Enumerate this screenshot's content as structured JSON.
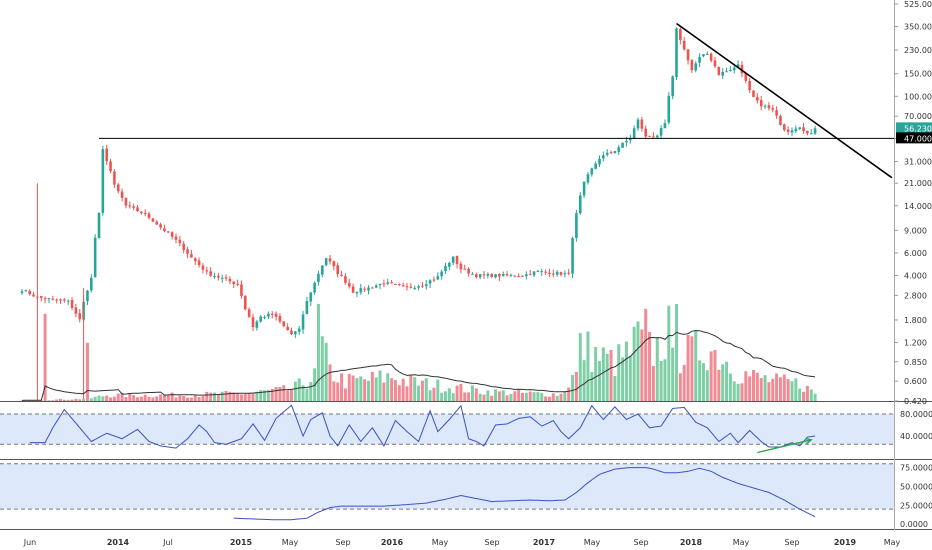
{
  "chart_data": {
    "type": "candlestick",
    "scale": "log",
    "colors": {
      "up": "#26a69a",
      "down": "#ef5350",
      "volume_up": "#7fcfa6",
      "volume_down": "#f08b95",
      "osc_line": "#3d4fc4",
      "osc_band": "#dde8fb",
      "trendline": "#000000",
      "arrow": "#2aa64a",
      "current_tag": "#26a69a",
      "level_tag": "#000000"
    },
    "price_axis": {
      "ticks": [
        "525.000",
        "350.000",
        "230.000",
        "150.000",
        "100.000",
        "70.000",
        "47.000",
        "31.000",
        "21.000",
        "14.000",
        "9.000",
        "6.000",
        "4.000",
        "2.800",
        "1.800",
        "1.200",
        "0.850",
        "0.600",
        "0.420"
      ],
      "tick_values": [
        525,
        350,
        230,
        150,
        100,
        70,
        47,
        31,
        21,
        14,
        9,
        6,
        4,
        2.8,
        1.8,
        1.2,
        0.85,
        0.6,
        0.42
      ],
      "current_price_tag": "56.230",
      "level_tag": "47.000",
      "current_value": 56.23,
      "level_value": 47
    },
    "time_axis": {
      "labels": [
        "Jun",
        "2014",
        "Jul",
        "2015",
        "May",
        "Sep",
        "2016",
        "May",
        "Sep",
        "2017",
        "May",
        "Sep",
        "2018",
        "May",
        "Sep",
        "2019",
        "May"
      ],
      "bold": [
        false,
        true,
        false,
        true,
        false,
        false,
        true,
        false,
        false,
        true,
        false,
        false,
        true,
        false,
        false,
        true,
        false
      ]
    },
    "horizontal_level": 47,
    "trendline": {
      "from": {
        "index": 170,
        "value": 370
      },
      "to": {
        "index": 227,
        "value": 22
      }
    },
    "close_anchors": [
      [
        0,
        3.1
      ],
      [
        4,
        2.7
      ],
      [
        8,
        2.6
      ],
      [
        12,
        2.5
      ],
      [
        15,
        1.8
      ],
      [
        18,
        3.8
      ],
      [
        20,
        12.0
      ],
      [
        21,
        38.0
      ],
      [
        24,
        20.0
      ],
      [
        27,
        14.0
      ],
      [
        32,
        12.0
      ],
      [
        36,
        9.5
      ],
      [
        40,
        7.5
      ],
      [
        44,
        5.5
      ],
      [
        48,
        4.2
      ],
      [
        52,
        3.8
      ],
      [
        56,
        3.4
      ],
      [
        58,
        2.2
      ],
      [
        60,
        1.6
      ],
      [
        62,
        1.9
      ],
      [
        65,
        2.0
      ],
      [
        68,
        1.6
      ],
      [
        70,
        1.4
      ],
      [
        72,
        1.5
      ],
      [
        76,
        3.5
      ],
      [
        79,
        5.5
      ],
      [
        82,
        4.2
      ],
      [
        86,
        3.0
      ],
      [
        90,
        3.2
      ],
      [
        94,
        3.5
      ],
      [
        100,
        3.2
      ],
      [
        104,
        3.4
      ],
      [
        108,
        3.9
      ],
      [
        112,
        5.5
      ],
      [
        114,
        4.5
      ],
      [
        118,
        4.0
      ],
      [
        124,
        4.0
      ],
      [
        130,
        4.0
      ],
      [
        134,
        4.3
      ],
      [
        138,
        4.2
      ],
      [
        142,
        4.1
      ],
      [
        144,
        12.0
      ],
      [
        146,
        21.0
      ],
      [
        150,
        33.0
      ],
      [
        154,
        38.0
      ],
      [
        158,
        47.0
      ],
      [
        160,
        65.0
      ],
      [
        162,
        48.0
      ],
      [
        165,
        50.0
      ],
      [
        167,
        60.0
      ],
      [
        169,
        140.0
      ],
      [
        170,
        330.0
      ],
      [
        172,
        230.0
      ],
      [
        174,
        160.0
      ],
      [
        176,
        200.0
      ],
      [
        178,
        215.0
      ],
      [
        181,
        150.0
      ],
      [
        184,
        160.0
      ],
      [
        186,
        175.0
      ],
      [
        188,
        130.0
      ],
      [
        190,
        100.0
      ],
      [
        192,
        85.0
      ],
      [
        195,
        80.0
      ],
      [
        197,
        60.0
      ],
      [
        199,
        52.0
      ],
      [
        202,
        56.0
      ],
      [
        204,
        50.0
      ],
      [
        206,
        56.23
      ]
    ],
    "volume_anchors": [
      [
        0,
        0.005
      ],
      [
        14,
        0.02
      ],
      [
        18,
        0.03
      ],
      [
        22,
        0.06
      ],
      [
        30,
        0.06
      ],
      [
        40,
        0.06
      ],
      [
        50,
        0.07
      ],
      [
        58,
        0.08
      ],
      [
        64,
        0.1
      ],
      [
        70,
        0.12
      ],
      [
        76,
        0.25
      ],
      [
        78,
        0.55
      ],
      [
        80,
        0.3
      ],
      [
        84,
        0.2
      ],
      [
        90,
        0.22
      ],
      [
        96,
        0.25
      ],
      [
        100,
        0.2
      ],
      [
        110,
        0.15
      ],
      [
        120,
        0.1
      ],
      [
        130,
        0.08
      ],
      [
        140,
        0.07
      ],
      [
        144,
        0.3
      ],
      [
        146,
        0.55
      ],
      [
        150,
        0.45
      ],
      [
        154,
        0.4
      ],
      [
        158,
        0.5
      ],
      [
        160,
        0.65
      ],
      [
        164,
        0.5
      ],
      [
        168,
        0.7
      ],
      [
        169,
        0.85
      ],
      [
        170,
        0.45
      ],
      [
        174,
        0.5
      ],
      [
        178,
        0.55
      ],
      [
        182,
        0.45
      ],
      [
        186,
        0.3
      ],
      [
        190,
        0.25
      ],
      [
        196,
        0.2
      ],
      [
        202,
        0.18
      ],
      [
        206,
        0.08
      ]
    ],
    "volume_spikes": [
      [
        6,
        0.9,
        "down"
      ],
      [
        17,
        0.6,
        "down"
      ],
      [
        77,
        1.0,
        "up"
      ],
      [
        144,
        0.3,
        "down"
      ],
      [
        145,
        0.7,
        "up"
      ],
      [
        162,
        0.95,
        "down"
      ],
      [
        169,
        0.55,
        "up"
      ],
      [
        170,
        1.0,
        "up"
      ]
    ],
    "oscillator_1": {
      "ticks": [
        "80.0000",
        "40.0000"
      ],
      "tick_values": [
        80,
        40
      ],
      "band": [
        80,
        25
      ],
      "range": [
        0,
        100
      ],
      "anchors": [
        [
          2,
          28
        ],
        [
          6,
          28
        ],
        [
          8,
          55
        ],
        [
          11,
          88
        ],
        [
          15,
          55
        ],
        [
          18,
          30
        ],
        [
          22,
          45
        ],
        [
          26,
          35
        ],
        [
          30,
          52
        ],
        [
          33,
          30
        ],
        [
          36,
          22
        ],
        [
          40,
          18
        ],
        [
          43,
          35
        ],
        [
          46,
          60
        ],
        [
          48,
          48
        ],
        [
          50,
          28
        ],
        [
          53,
          25
        ],
        [
          57,
          35
        ],
        [
          60,
          62
        ],
        [
          63,
          32
        ],
        [
          66,
          72
        ],
        [
          70,
          96
        ],
        [
          73,
          40
        ],
        [
          75,
          70
        ],
        [
          78,
          82
        ],
        [
          80,
          40
        ],
        [
          82,
          22
        ],
        [
          85,
          60
        ],
        [
          88,
          30
        ],
        [
          91,
          55
        ],
        [
          94,
          22
        ],
        [
          97,
          68
        ],
        [
          100,
          48
        ],
        [
          103,
          30
        ],
        [
          106,
          86
        ],
        [
          108,
          48
        ],
        [
          111,
          70
        ],
        [
          114,
          95
        ],
        [
          116,
          35
        ],
        [
          118,
          30
        ],
        [
          120,
          22
        ],
        [
          123,
          60
        ],
        [
          126,
          62
        ],
        [
          129,
          72
        ],
        [
          132,
          75
        ],
        [
          135,
          58
        ],
        [
          138,
          68
        ],
        [
          140,
          48
        ],
        [
          142,
          35
        ],
        [
          145,
          55
        ],
        [
          148,
          95
        ],
        [
          151,
          70
        ],
        [
          154,
          93
        ],
        [
          157,
          70
        ],
        [
          160,
          80
        ],
        [
          163,
          55
        ],
        [
          166,
          58
        ],
        [
          169,
          90
        ],
        [
          172,
          92
        ],
        [
          175,
          65
        ],
        [
          178,
          55
        ],
        [
          181,
          30
        ],
        [
          184,
          45
        ],
        [
          186,
          28
        ],
        [
          189,
          50
        ],
        [
          192,
          30
        ],
        [
          194,
          20
        ],
        [
          197,
          20
        ],
        [
          200,
          28
        ],
        [
          202,
          22
        ],
        [
          204,
          38
        ],
        [
          206,
          40
        ]
      ],
      "arrow": {
        "from": [
          191,
          10
        ],
        "to": [
          205,
          33
        ]
      }
    },
    "oscillator_2": {
      "ticks": [
        "75.0000",
        "50.0000",
        "25.0000",
        "0.0000"
      ],
      "tick_values": [
        75,
        50,
        25,
        0
      ],
      "band": [
        80,
        20
      ],
      "range": [
        -5,
        85
      ],
      "anchors": [
        [
          55,
          8
        ],
        [
          60,
          7
        ],
        [
          65,
          6
        ],
        [
          70,
          6
        ],
        [
          74,
          8
        ],
        [
          77,
          16
        ],
        [
          80,
          22
        ],
        [
          83,
          24
        ],
        [
          88,
          24
        ],
        [
          94,
          24
        ],
        [
          100,
          26
        ],
        [
          105,
          28
        ],
        [
          110,
          33
        ],
        [
          114,
          38
        ],
        [
          118,
          34
        ],
        [
          122,
          30
        ],
        [
          127,
          31
        ],
        [
          132,
          32
        ],
        [
          137,
          31
        ],
        [
          141,
          32
        ],
        [
          144,
          42
        ],
        [
          147,
          55
        ],
        [
          150,
          66
        ],
        [
          154,
          73
        ],
        [
          158,
          75
        ],
        [
          162,
          75
        ],
        [
          164,
          73
        ],
        [
          167,
          68
        ],
        [
          170,
          68
        ],
        [
          173,
          70
        ],
        [
          176,
          74
        ],
        [
          179,
          70
        ],
        [
          182,
          62
        ],
        [
          186,
          54
        ],
        [
          190,
          48
        ],
        [
          194,
          42
        ],
        [
          198,
          32
        ],
        [
          202,
          20
        ],
        [
          206,
          10
        ]
      ]
    }
  }
}
